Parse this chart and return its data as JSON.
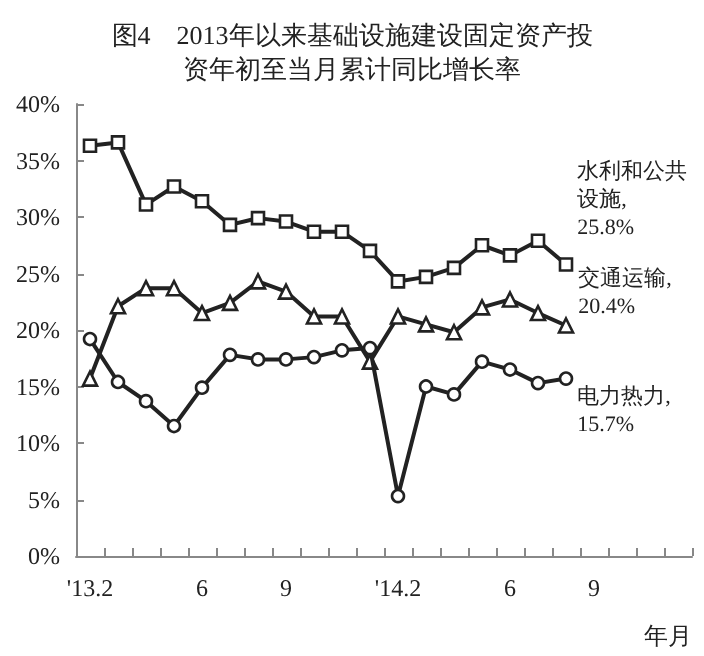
{
  "chart_data": {
    "type": "line",
    "title": "图4　2013年以来基础设施建设固定资产投资年初至当月累计同比增长率",
    "xlabel": "年月",
    "categories": [
      "'13.2",
      null,
      null,
      null,
      "6",
      null,
      null,
      "9",
      null,
      null,
      null,
      "'14.2",
      null,
      null,
      null,
      "6",
      null,
      null,
      "9",
      null,
      null,
      null
    ],
    "ylim": [
      0,
      40
    ],
    "yticks": [
      {
        "value": 0,
        "label": "0%"
      },
      {
        "value": 5,
        "label": "5%"
      },
      {
        "value": 10,
        "label": "10%"
      },
      {
        "value": 15,
        "label": "15%"
      },
      {
        "value": 20,
        "label": "20%"
      },
      {
        "value": 25,
        "label": "25%"
      },
      {
        "value": 30,
        "label": "30%"
      },
      {
        "value": 35,
        "label": "35%"
      },
      {
        "value": 40,
        "label": "40%"
      }
    ],
    "grid": false,
    "series": [
      {
        "name": "水利和公共设施,",
        "color": "#222222",
        "marker": "square",
        "values": [
          36.3,
          36.6,
          31.1,
          32.7,
          31.4,
          29.3,
          29.9,
          29.6,
          28.7,
          28.7,
          27.0,
          24.3,
          24.7,
          25.5,
          27.5,
          26.6,
          27.9,
          25.8,
          null,
          null,
          null,
          null
        ],
        "value_labels": [
          null,
          null,
          null,
          null,
          null,
          null,
          null,
          null,
          null,
          null,
          null,
          null,
          null,
          null,
          null,
          null,
          null,
          "25.8%",
          null,
          null,
          null,
          null
        ]
      },
      {
        "name": "交通运输,",
        "color": "#222222",
        "marker": "triangle",
        "values": [
          15.7,
          22.1,
          23.7,
          23.7,
          21.5,
          22.4,
          24.3,
          23.4,
          21.2,
          21.2,
          17.2,
          21.2,
          20.5,
          19.8,
          22.0,
          22.7,
          21.5,
          20.4,
          null,
          null,
          null,
          null
        ],
        "value_labels": [
          null,
          null,
          null,
          null,
          null,
          null,
          null,
          null,
          null,
          null,
          null,
          null,
          null,
          null,
          null,
          null,
          null,
          "20.4%",
          null,
          null,
          null,
          null
        ]
      },
      {
        "name": "电力热力,",
        "color": "#222222",
        "marker": "circle",
        "values": [
          19.2,
          15.4,
          13.7,
          11.5,
          14.9,
          17.8,
          17.4,
          17.4,
          17.6,
          18.2,
          18.4,
          5.3,
          15.0,
          14.3,
          17.2,
          16.5,
          15.3,
          15.7,
          null,
          null,
          null,
          null
        ],
        "value_labels": [
          null,
          null,
          null,
          null,
          null,
          null,
          null,
          null,
          null,
          null,
          null,
          null,
          null,
          null,
          null,
          null,
          null,
          "15.7%",
          null,
          null,
          null,
          null
        ]
      }
    ]
  }
}
